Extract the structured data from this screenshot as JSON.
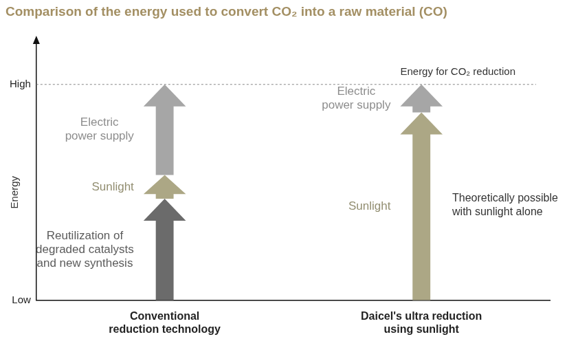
{
  "chart_data": {
    "type": "bar",
    "title": "Comparison of the energy used to convert CO₂ into a raw material (CO)",
    "y_label": "Energy",
    "categories": [
      [
        "Conventional",
        "reduction technology"
      ],
      [
        "Daicel's ultra reduction",
        "using sunlight"
      ]
    ],
    "series": [
      {
        "name": "Reutilization of\ndegraded catalysts\nand new synthesis",
        "color": "#6b6b6b",
        "values": [
          47,
          null
        ]
      },
      {
        "name": "Sunlight",
        "color": "#aca785",
        "values": [
          11,
          87
        ]
      },
      {
        "name": "Electric\npower supply",
        "color": "#a6a6a6",
        "values": [
          42,
          13
        ]
      }
    ],
    "stacked": true,
    "grid": false,
    "ylim": [
      0,
      120
    ],
    "yticks": [
      {
        "value": 0,
        "label": "Low"
      },
      {
        "value": 100,
        "label": "High"
      }
    ],
    "reference_line": {
      "y": 100,
      "label": "Energy for CO₂ reduction"
    },
    "annotations": [
      {
        "text": "Theoretically possible\nwith sunlight alone",
        "x": 1,
        "y": 44
      }
    ]
  }
}
